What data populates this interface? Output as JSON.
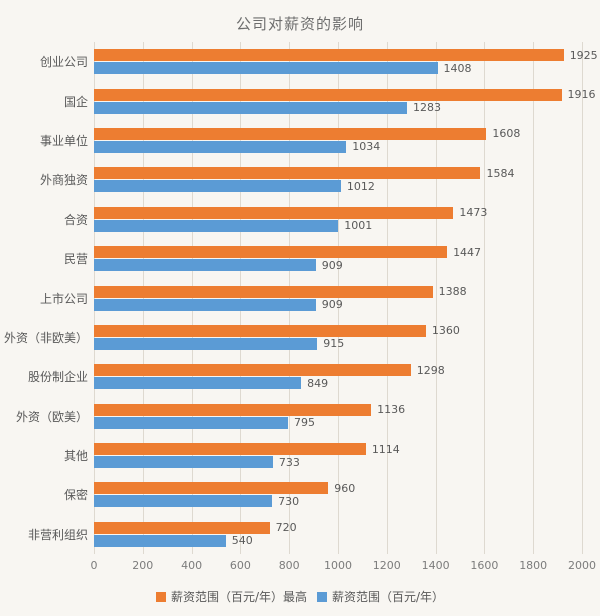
{
  "title": "公司对薪资的影响",
  "colors": {
    "max_bar": "#ED7D31",
    "base_bar": "#5B9BD5",
    "gridline": "#DED9D0",
    "text": "#595959",
    "background": "#F8F6F2"
  },
  "chart_data": {
    "type": "bar",
    "orientation": "horizontal",
    "title": "公司对薪资的影响",
    "categories": [
      "创业公司",
      "国企",
      "事业单位",
      "外商独资",
      "合资",
      "民营",
      "上市公司",
      "外资（非欧美）",
      "股份制企业",
      "外资（欧美）",
      "其他",
      "保密",
      "非营利组织"
    ],
    "series": [
      {
        "name": "薪资范围（百元/年）最高",
        "color": "#ED7D31",
        "values": [
          1925,
          1916,
          1608,
          1584,
          1473,
          1447,
          1388,
          1360,
          1298,
          1136,
          1114,
          960,
          720
        ]
      },
      {
        "name": "薪资范围（百元/年）",
        "color": "#5B9BD5",
        "values": [
          1408,
          1283,
          1034,
          1012,
          1001,
          909,
          909,
          915,
          849,
          795,
          733,
          730,
          540
        ]
      }
    ],
    "xlabel": "",
    "ylabel": "",
    "xlim": [
      0,
      2000
    ],
    "x_ticks": [
      0,
      200,
      400,
      600,
      800,
      1000,
      1200,
      1400,
      1600,
      1800,
      2000
    ],
    "grid": true,
    "legend_position": "bottom",
    "data_labels": true
  }
}
